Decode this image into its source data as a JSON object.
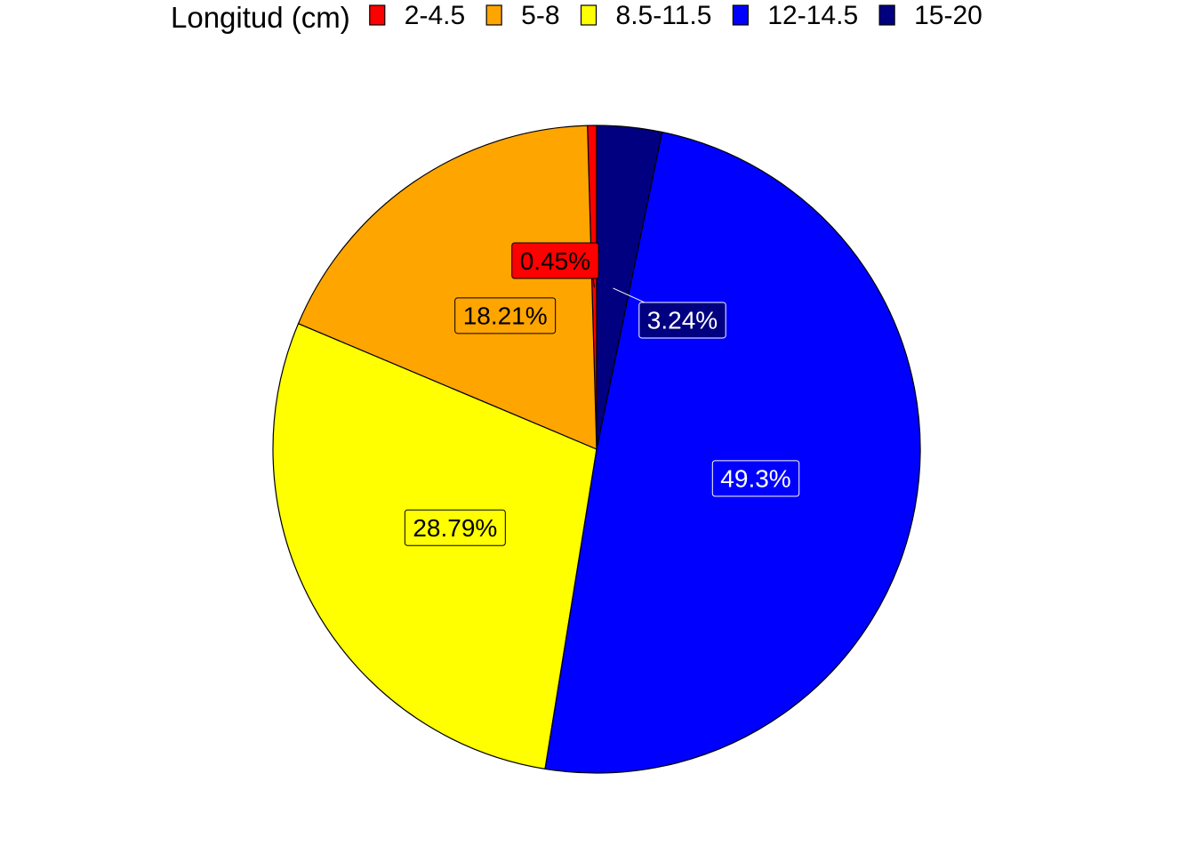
{
  "chart_data": {
    "type": "pie",
    "legend": {
      "title": "Longitud (cm)",
      "position": "top"
    },
    "slices": [
      {
        "category": "2-4.5",
        "value": 0.45,
        "label": "0.45%",
        "color": "#FF0000",
        "label_text_color": "#000000"
      },
      {
        "category": "5-8",
        "value": 18.21,
        "label": "18.21%",
        "color": "#FFA500",
        "label_text_color": "#000000"
      },
      {
        "category": "8.5-11.5",
        "value": 28.79,
        "label": "28.79%",
        "color": "#FFFF00",
        "label_text_color": "#000000"
      },
      {
        "category": "12-14.5",
        "value": 49.3,
        "label": "49.3%",
        "color": "#0000FF",
        "label_text_color": "#FFFFFF"
      },
      {
        "category": "15-20",
        "value": 3.24,
        "label": "3.24%",
        "color": "#000080",
        "label_text_color": "#FFFFFF"
      }
    ],
    "start": "12 o'clock",
    "direction": "counterclockwise"
  }
}
